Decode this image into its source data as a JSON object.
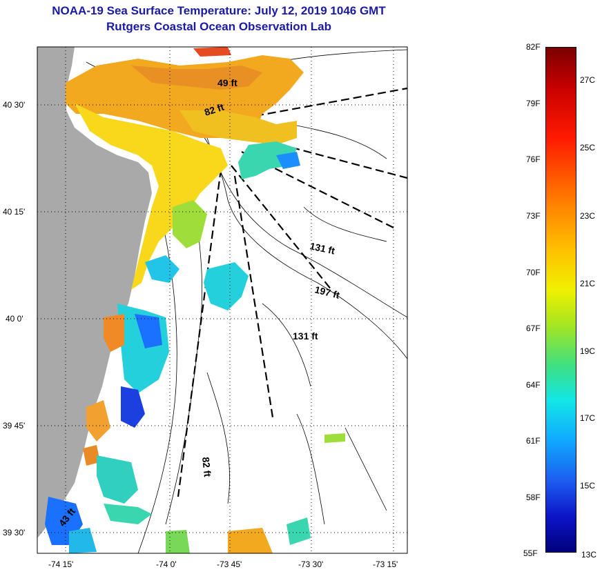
{
  "title": {
    "line1": "NOAA-19 Sea Surface Temperature:  July 12, 2019 1046 GMT",
    "line2": "Rutgers Coastal Ocean Observation Lab"
  },
  "map": {
    "lat_labels": [
      "40 30'",
      "40 15'",
      "40 0'",
      "39 45'",
      "39 30'"
    ],
    "lon_labels": [
      "-74 15'",
      "-74 0'",
      "-73 45'",
      "-73 30'",
      "-73 15'"
    ],
    "depth_labels": [
      "49 ft",
      "82 ft",
      "131 ft",
      "197 ft",
      "131 ft",
      "82 ft",
      "43 ft"
    ]
  },
  "colorbar": {
    "f_labels": [
      "82F",
      "79F",
      "76F",
      "73F",
      "70F",
      "67F",
      "64F",
      "61F",
      "58F",
      "55F"
    ],
    "c_labels": [
      "27C",
      "25C",
      "23C",
      "21C",
      "19C",
      "17C",
      "15C",
      "13C"
    ]
  },
  "colors": {
    "land": "#a9a9a9",
    "title_text": "#1a1aa6"
  }
}
